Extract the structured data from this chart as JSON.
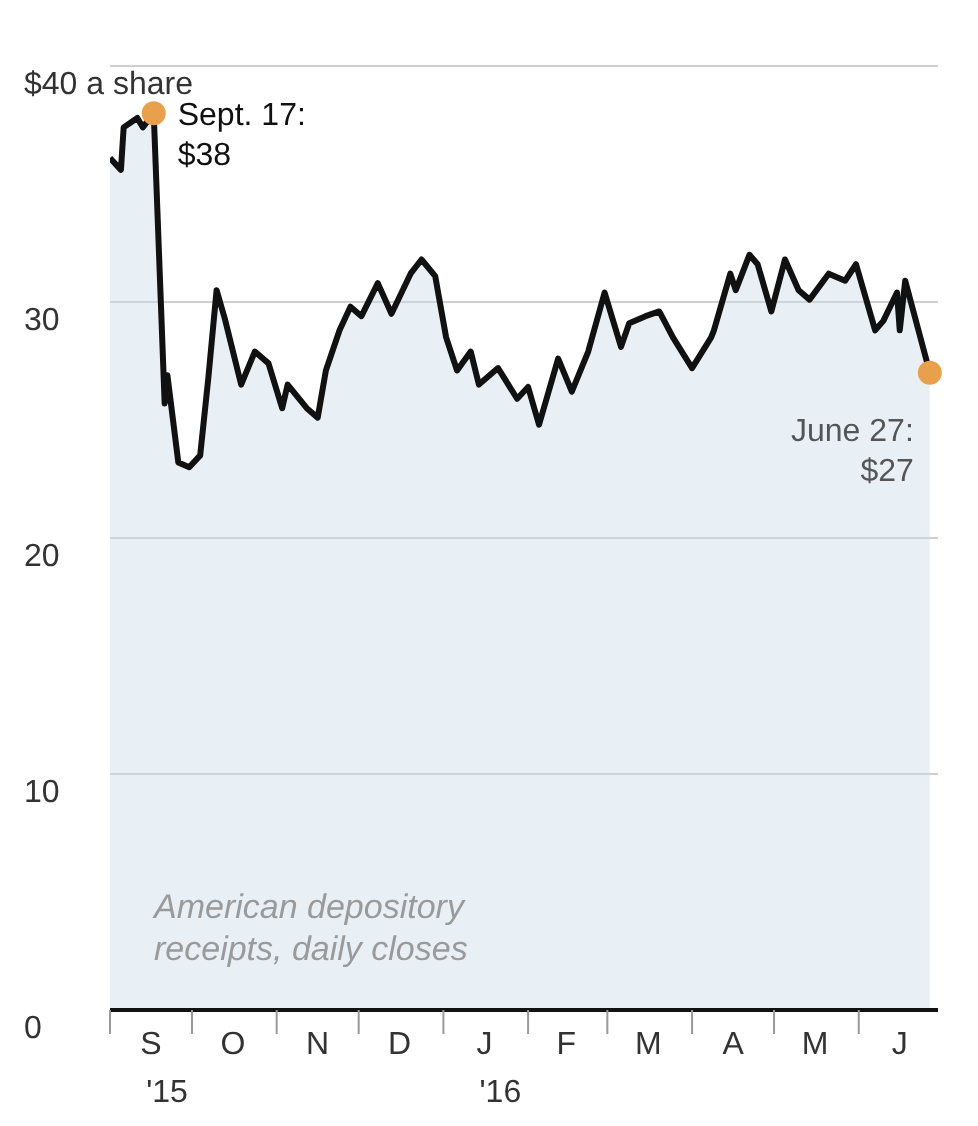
{
  "chart_data": {
    "type": "area",
    "x": [
      "2015-09-01",
      "2015-09-05",
      "2015-09-06",
      "2015-09-11",
      "2015-09-13",
      "2015-09-17",
      "2015-09-21",
      "2015-09-22",
      "2015-09-26",
      "2015-09-30",
      "2015-10-04",
      "2015-10-07",
      "2015-10-10",
      "2015-10-13",
      "2015-10-19",
      "2015-10-24",
      "2015-10-29",
      "2015-11-03",
      "2015-11-05",
      "2015-11-12",
      "2015-11-16",
      "2015-11-19",
      "2015-11-24",
      "2015-11-28",
      "2015-12-02",
      "2015-12-08",
      "2015-12-13",
      "2015-12-20",
      "2015-12-24",
      "2015-12-29",
      "2016-01-02",
      "2016-01-06",
      "2016-01-11",
      "2016-01-14",
      "2016-01-21",
      "2016-01-28",
      "2016-02-01",
      "2016-02-05",
      "2016-02-12",
      "2016-02-17",
      "2016-02-23",
      "2016-02-29",
      "2016-03-06",
      "2016-03-09",
      "2016-03-15",
      "2016-03-20",
      "2016-03-25",
      "2016-04-01",
      "2016-04-08",
      "2016-04-09",
      "2016-04-15",
      "2016-04-17",
      "2016-04-22",
      "2016-04-25",
      "2016-04-30",
      "2016-05-05",
      "2016-05-10",
      "2016-05-14",
      "2016-05-21",
      "2016-05-27",
      "2016-05-31",
      "2016-06-07",
      "2016-06-10",
      "2016-06-15",
      "2016-06-16",
      "2016-06-18",
      "2016-06-27"
    ],
    "series": [
      {
        "color": "#111111",
        "values": [
          36.1,
          35.6,
          37.4,
          37.8,
          37.4,
          38,
          25.7,
          26.9,
          23.2,
          23,
          23.5,
          26.8,
          30.5,
          29.3,
          26.5,
          27.9,
          27.4,
          25.5,
          26.5,
          25.5,
          25.1,
          27.1,
          28.8,
          29.8,
          29.4,
          30.8,
          29.5,
          31.2,
          31.8,
          31.1,
          28.5,
          27.1,
          27.9,
          26.5,
          27.2,
          25.9,
          26.4,
          24.8,
          27.6,
          26.2,
          27.9,
          30.4,
          28.1,
          29.1,
          29.4,
          29.6,
          28.5,
          27.2,
          28.5,
          28.8,
          31.2,
          30.5,
          32,
          31.6,
          29.6,
          31.8,
          30.5,
          30.1,
          31.2,
          30.9,
          31.6,
          28.8,
          29.2,
          30.4,
          28.8,
          30.9,
          27
        ]
      }
    ],
    "xlim": [
      "2015-09-01",
      "2016-06-30"
    ],
    "xticks": [
      {
        "value": "2015-09-01",
        "label": null
      },
      {
        "value": "2015-09-16",
        "label": "S\n'15"
      },
      {
        "value": "2015-10-01",
        "label": null
      },
      {
        "value": "2015-10-16",
        "label": "O"
      },
      {
        "value": "2015-11-01",
        "label": null
      },
      {
        "value": "2015-11-16",
        "label": "N"
      },
      {
        "value": "2015-12-01",
        "label": null
      },
      {
        "value": "2015-12-16",
        "label": "D"
      },
      {
        "value": "2016-01-01",
        "label": null
      },
      {
        "value": "2016-01-16",
        "label": "J\n'16"
      },
      {
        "value": "2016-02-01",
        "label": null
      },
      {
        "value": "2016-02-15",
        "label": "F"
      },
      {
        "value": "2016-03-01",
        "label": null
      },
      {
        "value": "2016-03-16",
        "label": "M"
      },
      {
        "value": "2016-04-01",
        "label": null
      },
      {
        "value": "2016-04-16",
        "label": "A"
      },
      {
        "value": "2016-05-01",
        "label": null
      },
      {
        "value": "2016-05-16",
        "label": "M"
      },
      {
        "value": "2016-06-01",
        "label": null
      },
      {
        "value": "2016-06-16",
        "label": "J"
      }
    ],
    "ylim": [
      0,
      40
    ],
    "yticks": [
      0,
      10,
      20,
      30,
      {
        "value": 40,
        "label": "$40 a share"
      }
    ],
    "grid": "y",
    "marker": "none",
    "annotations": [
      {
        "text": "Sept. 17:\n$38",
        "x": "2015-09-17",
        "y": 38
      },
      {
        "text": "June 27:\n$27",
        "x": "2016-06-27",
        "y": 27
      },
      "American depository\nreceipts, daily closes"
    ]
  }
}
